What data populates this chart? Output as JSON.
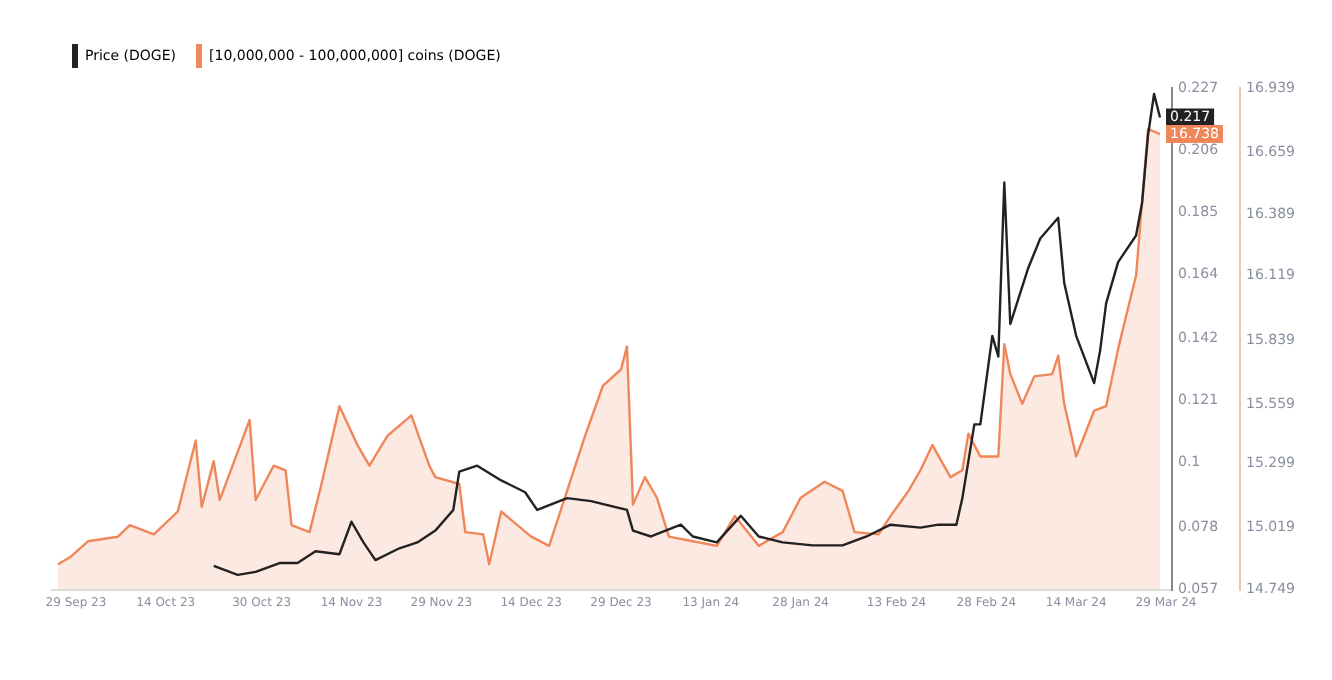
{
  "chart_data": {
    "type": "line",
    "legend": "top left",
    "grid": false,
    "marker": "none",
    "xlim": [
      "2023-09-25",
      "2024-03-30"
    ],
    "xticks": [
      {
        "value": "2023-09-29",
        "label": "29 Sep 23"
      },
      {
        "value": "2023-10-14",
        "label": "14 Oct 23"
      },
      {
        "value": "2023-10-30",
        "label": "30 Oct 23"
      },
      {
        "value": "2023-11-14",
        "label": "14 Nov 23"
      },
      {
        "value": "2023-11-29",
        "label": "29 Nov 23"
      },
      {
        "value": "2023-12-14",
        "label": "14 Dec 23"
      },
      {
        "value": "2023-12-29",
        "label": "29 Dec 23"
      },
      {
        "value": "2024-01-13",
        "label": "13 Jan 24"
      },
      {
        "value": "2024-01-28",
        "label": "28 Jan 24"
      },
      {
        "value": "2024-02-13",
        "label": "13 Feb 24"
      },
      {
        "value": "2024-02-28",
        "label": "28 Feb 24"
      },
      {
        "value": "2024-03-14",
        "label": "14 Mar 24"
      },
      {
        "value": "2024-03-29",
        "label": "29 Mar 24"
      }
    ],
    "ylim": [
      0.057,
      0.227
    ],
    "yticks": [
      0.057,
      0.078,
      0.1,
      0.121,
      0.142,
      0.164,
      0.185,
      0.206,
      0.227
    ],
    "y2lim": [
      14.749,
      16.939
    ],
    "y2ticks": [
      14.749,
      15.019,
      15.299,
      15.559,
      15.839,
      16.119,
      16.389,
      16.659,
      16.939
    ],
    "series": [
      {
        "name": "Price (DOGE)",
        "color": "#222222",
        "axis": "y",
        "x": [
          "2023-10-22",
          "2023-10-26",
          "2023-10-29",
          "2023-11-02",
          "2023-11-05",
          "2023-11-08",
          "2023-11-12",
          "2023-11-14",
          "2023-11-16",
          "2023-11-18",
          "2023-11-22",
          "2023-11-25",
          "2023-11-28",
          "2023-12-01",
          "2023-12-02",
          "2023-12-05",
          "2023-12-09",
          "2023-12-13",
          "2023-12-15",
          "2023-12-20",
          "2023-12-24",
          "2023-12-30",
          "2023-12-31",
          "2024-01-03",
          "2024-01-08",
          "2024-01-10",
          "2024-01-14",
          "2024-01-18",
          "2024-01-21",
          "2024-01-25",
          "2024-01-30",
          "2024-02-04",
          "2024-02-08",
          "2024-02-12",
          "2024-02-17",
          "2024-02-20",
          "2024-02-23",
          "2024-02-24",
          "2024-02-26",
          "2024-02-27",
          "2024-02-29",
          "2024-03-01",
          "2024-03-02",
          "2024-03-03",
          "2024-03-06",
          "2024-03-08",
          "2024-03-11",
          "2024-03-12",
          "2024-03-14",
          "2024-03-17",
          "2024-03-18",
          "2024-03-19",
          "2024-03-21",
          "2024-03-24",
          "2024-03-25",
          "2024-03-26",
          "2024-03-27",
          "2024-03-28"
        ],
        "values": [
          0.065,
          0.062,
          0.063,
          0.066,
          0.066,
          0.07,
          0.069,
          0.08,
          0.073,
          0.067,
          0.071,
          0.073,
          0.077,
          0.084,
          0.097,
          0.099,
          0.094,
          0.09,
          0.084,
          0.088,
          0.087,
          0.084,
          0.077,
          0.075,
          0.079,
          0.075,
          0.073,
          0.082,
          0.075,
          0.073,
          0.072,
          0.072,
          0.075,
          0.079,
          0.078,
          0.079,
          0.079,
          0.088,
          0.113,
          0.113,
          0.143,
          0.136,
          0.195,
          0.147,
          0.166,
          0.176,
          0.183,
          0.161,
          0.143,
          0.127,
          0.138,
          0.154,
          0.168,
          0.177,
          0.188,
          0.211,
          0.225,
          0.217
        ],
        "value_labels": [
          null,
          null,
          null,
          null,
          null,
          null,
          null,
          null,
          null,
          null,
          null,
          null,
          null,
          null,
          null,
          null,
          null,
          null,
          null,
          null,
          null,
          null,
          null,
          null,
          null,
          null,
          null,
          null,
          null,
          null,
          null,
          null,
          null,
          null,
          null,
          null,
          null,
          null,
          null,
          null,
          null,
          null,
          null,
          null,
          null,
          null,
          null,
          null,
          null,
          null,
          null,
          null,
          null,
          null,
          null,
          null,
          null,
          "0.217"
        ]
      },
      {
        "name": "[10,000,000 - 100,000,000] coins (DOGE)",
        "type": "area",
        "color": "#f0875a",
        "axis": "y2",
        "x": [
          "2023-09-26",
          "2023-09-28",
          "2023-10-01",
          "2023-10-06",
          "2023-10-08",
          "2023-10-12",
          "2023-10-16",
          "2023-10-19",
          "2023-10-20",
          "2023-10-22",
          "2023-10-23",
          "2023-10-28",
          "2023-10-29",
          "2023-11-01",
          "2023-11-03",
          "2023-11-04",
          "2023-11-07",
          "2023-11-09",
          "2023-11-12",
          "2023-11-15",
          "2023-11-17",
          "2023-11-20",
          "2023-11-24",
          "2023-11-27",
          "2023-11-28",
          "2023-12-02",
          "2023-12-03",
          "2023-12-06",
          "2023-12-07",
          "2023-12-09",
          "2023-12-14",
          "2023-12-17",
          "2023-12-20",
          "2023-12-23",
          "2023-12-26",
          "2023-12-29",
          "2023-12-30",
          "2023-12-31",
          "2024-01-02",
          "2024-01-04",
          "2024-01-06",
          "2024-01-10",
          "2024-01-14",
          "2024-01-17",
          "2024-01-21",
          "2024-01-25",
          "2024-01-28",
          "2024-02-01",
          "2024-02-04",
          "2024-02-06",
          "2024-02-10",
          "2024-02-12",
          "2024-02-15",
          "2024-02-17",
          "2024-02-19",
          "2024-02-22",
          "2024-02-24",
          "2024-02-25",
          "2024-02-27",
          "2024-03-01",
          "2024-03-02",
          "2024-03-03",
          "2024-03-05",
          "2024-03-07",
          "2024-03-10",
          "2024-03-11",
          "2024-03-12",
          "2024-03-14",
          "2024-03-17",
          "2024-03-19",
          "2024-03-21",
          "2024-03-24",
          "2024-03-25",
          "2024-03-26",
          "2024-03-28"
        ],
        "values": [
          14.86,
          14.89,
          14.96,
          14.98,
          15.03,
          14.99,
          15.09,
          15.4,
          15.11,
          15.31,
          15.14,
          15.49,
          15.14,
          15.29,
          15.27,
          15.03,
          15.0,
          15.21,
          15.55,
          15.38,
          15.29,
          15.42,
          15.51,
          15.29,
          15.24,
          15.21,
          15.0,
          14.99,
          14.86,
          15.09,
          14.98,
          14.94,
          15.18,
          15.42,
          15.64,
          15.71,
          15.81,
          15.12,
          15.24,
          15.15,
          14.98,
          14.96,
          14.94,
          15.07,
          14.94,
          15.0,
          15.15,
          15.22,
          15.18,
          15.0,
          14.99,
          15.07,
          15.18,
          15.27,
          15.38,
          15.24,
          15.27,
          15.43,
          15.33,
          15.33,
          15.82,
          15.69,
          15.56,
          15.68,
          15.69,
          15.77,
          15.56,
          15.33,
          15.53,
          15.55,
          15.8,
          16.12,
          16.44,
          16.76,
          16.738
        ],
        "value_labels": [
          null,
          null,
          null,
          null,
          null,
          null,
          null,
          null,
          null,
          null,
          null,
          null,
          null,
          null,
          null,
          null,
          null,
          null,
          null,
          null,
          null,
          null,
          null,
          null,
          null,
          null,
          null,
          null,
          null,
          null,
          null,
          null,
          null,
          null,
          null,
          null,
          null,
          null,
          null,
          null,
          null,
          null,
          null,
          null,
          null,
          null,
          null,
          null,
          null,
          null,
          null,
          null,
          null,
          null,
          null,
          null,
          null,
          null,
          null,
          null,
          null,
          null,
          null,
          null,
          null,
          null,
          null,
          null,
          null,
          null,
          null,
          null,
          null,
          null,
          "16.738"
        ]
      }
    ]
  }
}
